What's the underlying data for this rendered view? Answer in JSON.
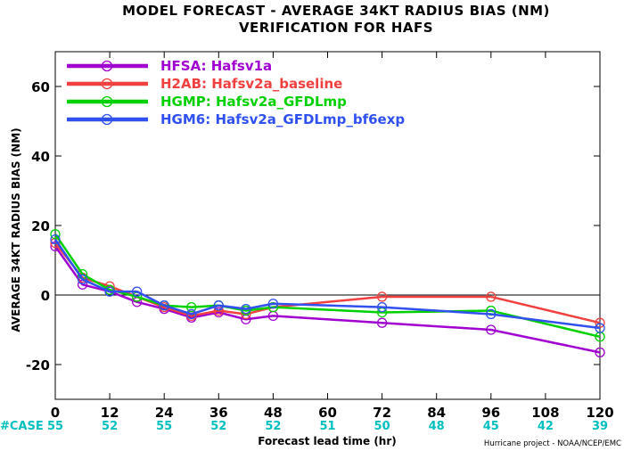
{
  "title_line1": "MODEL FORECAST - AVERAGE 34KT RADIUS BIAS (NM)",
  "title_line2": "VERIFICATION FOR HAFS",
  "credit": "Hurricane project - NOAA/NCEP/EMC",
  "case_label": "#CASE",
  "colors": {
    "case_label": "#00bfbf",
    "case_count": "#00bfbf",
    "zero_line": "#000000"
  },
  "chart_data": {
    "type": "line",
    "xlabel": "Forecast lead time (hr)",
    "ylabel": "AVERAGE 34KT RADIUS BIAS (NM)",
    "xlim": [
      0,
      120
    ],
    "ylim": [
      -30,
      70
    ],
    "xticks": [
      0,
      12,
      24,
      36,
      48,
      60,
      72,
      84,
      96,
      108,
      120
    ],
    "yticks": [
      -20,
      0,
      20,
      40,
      60
    ],
    "grid": false,
    "legend_position": "top-left",
    "case_counts": [
      {
        "x": 0,
        "n": "55"
      },
      {
        "x": 12,
        "n": "52"
      },
      {
        "x": 24,
        "n": "55"
      },
      {
        "x": 36,
        "n": "52"
      },
      {
        "x": 48,
        "n": "52"
      },
      {
        "x": 60,
        "n": "51"
      },
      {
        "x": 72,
        "n": "50"
      },
      {
        "x": 84,
        "n": "48"
      },
      {
        "x": 96,
        "n": "45"
      },
      {
        "x": 108,
        "n": "42"
      },
      {
        "x": 120,
        "n": "39"
      }
    ],
    "series": [
      {
        "name": "HFSA:",
        "label": "Hafsv1a",
        "color": "#a000d0",
        "x": [
          0,
          6,
          12,
          18,
          24,
          30,
          36,
          42,
          48,
          72,
          96,
          120
        ],
        "y": [
          14,
          3,
          1,
          -2,
          -4,
          -6.5,
          -5,
          -7,
          -6,
          -8,
          -10,
          -16.5
        ]
      },
      {
        "name": "H2AB:",
        "label": "Hafsv2a_baseline",
        "color": "#f04040",
        "x": [
          0,
          6,
          12,
          18,
          24,
          30,
          36,
          42,
          48,
          72,
          96,
          120
        ],
        "y": [
          15,
          5,
          2.5,
          -0.5,
          -3.5,
          -6,
          -4.5,
          -5.5,
          -3.5,
          -0.5,
          -0.5,
          -8
        ]
      },
      {
        "name": "HGMP:",
        "label": "Hafsv2a_GFDLmp",
        "color": "#00d000",
        "x": [
          0,
          6,
          12,
          18,
          24,
          30,
          36,
          42,
          48,
          72,
          96,
          120
        ],
        "y": [
          17.5,
          6,
          1.5,
          -0.5,
          -3,
          -3.5,
          -3,
          -4.5,
          -3.5,
          -5,
          -4.5,
          -12
        ]
      },
      {
        "name": "HGM6:",
        "label": "Hafsv2a_GFDLmp_bf6exp",
        "color": "#3050f0",
        "x": [
          0,
          6,
          12,
          18,
          24,
          30,
          36,
          42,
          48,
          72,
          96,
          120
        ],
        "y": [
          16,
          4.5,
          1,
          1,
          -3,
          -5.5,
          -3,
          -4,
          -2.5,
          -3.5,
          -5.5,
          -9.5
        ]
      }
    ]
  }
}
